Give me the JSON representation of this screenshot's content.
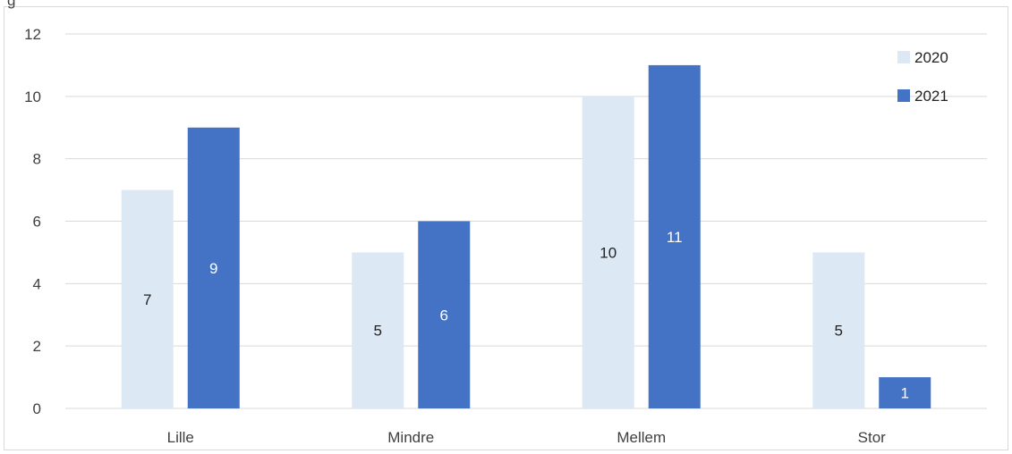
{
  "chart_data": {
    "type": "bar",
    "title_fragment": "g",
    "categories": [
      "Lille",
      "Mindre",
      "Mellem",
      "Stor"
    ],
    "series": [
      {
        "name": "2020",
        "values": [
          7,
          5,
          10,
          5
        ],
        "color": "#dde8f5",
        "label_color": "#222222"
      },
      {
        "name": "2021",
        "values": [
          9,
          6,
          11,
          1
        ],
        "color": "#4472c4",
        "label_color": "#ffffff"
      }
    ],
    "ylim": [
      0,
      12
    ],
    "yticks": [
      0,
      2,
      4,
      6,
      8,
      10,
      12
    ],
    "grid": true,
    "legend_position": "top-right",
    "gridline_color": "#d9d9d9"
  }
}
